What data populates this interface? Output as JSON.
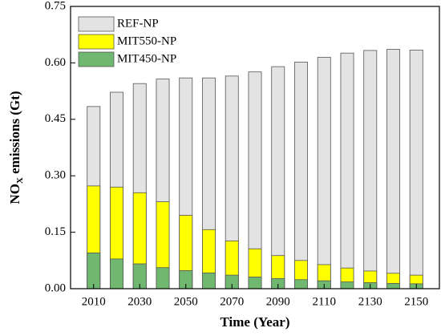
{
  "chart_data": {
    "type": "bar",
    "overlay": true,
    "x_label": "Time (Year)",
    "y_label": [
      "NO",
      "X",
      " emissions (Gt)"
    ],
    "x": [
      2010,
      2020,
      2030,
      2040,
      2050,
      2060,
      2070,
      2080,
      2090,
      2100,
      2110,
      2120,
      2130,
      2140,
      2150
    ],
    "xlim": [
      2000,
      2160
    ],
    "xticks": [
      2010,
      2030,
      2050,
      2070,
      2090,
      2110,
      2130,
      2150
    ],
    "ylim": [
      0,
      0.75
    ],
    "yticks": [
      {
        "value": 0,
        "label": "0.00"
      },
      {
        "value": 0.15,
        "label": "0.15"
      },
      {
        "value": 0.3,
        "label": "0.30"
      },
      {
        "value": 0.45,
        "label": "0.45"
      },
      {
        "value": 0.6,
        "label": "0.60"
      },
      {
        "value": 0.75,
        "label": "0.75"
      }
    ],
    "legend": "upper-left",
    "series": [
      {
        "name": "REF-NP",
        "color": "#e3e3e3",
        "values": [
          0.484,
          0.522,
          0.545,
          0.557,
          0.56,
          0.56,
          0.565,
          0.576,
          0.59,
          0.602,
          0.615,
          0.626,
          0.633,
          0.636,
          0.634
        ]
      },
      {
        "name": "MIT550-NP",
        "color": "#ffff00",
        "values": [
          0.273,
          0.27,
          0.255,
          0.231,
          0.195,
          0.157,
          0.127,
          0.106,
          0.088,
          0.075,
          0.064,
          0.055,
          0.047,
          0.041,
          0.036
        ]
      },
      {
        "name": "MIT450-NP",
        "color": "#70b870",
        "values": [
          0.095,
          0.079,
          0.066,
          0.056,
          0.048,
          0.042,
          0.036,
          0.031,
          0.027,
          0.024,
          0.021,
          0.018,
          0.016,
          0.014,
          0.013
        ]
      }
    ]
  }
}
